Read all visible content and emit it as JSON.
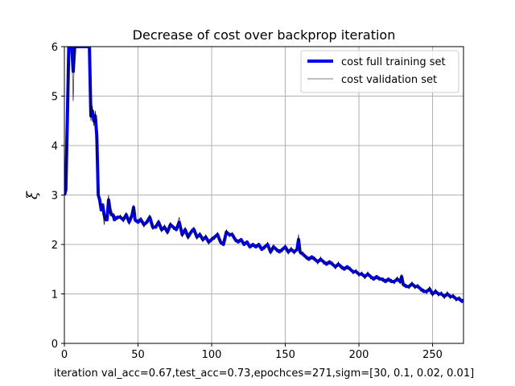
{
  "chart_data": {
    "type": "line",
    "title": "Decrease of cost over backprop iteration",
    "xlabel": "iteration   val_acc=0.67,test_acc=0.73,epochces=271,sigm=[30, 0.1, 0.02, 0.01]",
    "ylabel": "ξ",
    "xlim": [
      0,
      271
    ],
    "ylim": [
      0,
      6
    ],
    "x_ticks": [
      0,
      50,
      100,
      150,
      200,
      250
    ],
    "y_ticks": [
      0,
      1,
      2,
      3,
      4,
      5,
      6
    ],
    "x_tick_labels": [
      "0",
      "50",
      "100",
      "150",
      "200",
      "250"
    ],
    "y_tick_labels": [
      "0",
      "1",
      "2",
      "3",
      "4",
      "5",
      "6"
    ],
    "grid": true,
    "legend_position": "top-right",
    "series": [
      {
        "name": "cost full training set",
        "color": "#0000ee",
        "style": "thick",
        "x": [
          0,
          1,
          2,
          3,
          4,
          5,
          6,
          7,
          8,
          9,
          10,
          11,
          12,
          13,
          14,
          15,
          16,
          17,
          18,
          19,
          20,
          21,
          22,
          23,
          24,
          25,
          26,
          27,
          28,
          29,
          30,
          31,
          32,
          33,
          34,
          36,
          38,
          40,
          42,
          44,
          46,
          47,
          48,
          50,
          52,
          54,
          56,
          58,
          60,
          62,
          64,
          66,
          68,
          70,
          72,
          74,
          76,
          78,
          80,
          82,
          84,
          86,
          88,
          90,
          92,
          94,
          96,
          98,
          100,
          102,
          104,
          106,
          108,
          110,
          112,
          114,
          116,
          118,
          120,
          122,
          124,
          126,
          128,
          130,
          132,
          134,
          136,
          138,
          140,
          142,
          144,
          146,
          148,
          150,
          152,
          154,
          156,
          158,
          159,
          160,
          162,
          164,
          166,
          168,
          170,
          172,
          174,
          176,
          178,
          180,
          182,
          184,
          186,
          188,
          190,
          192,
          194,
          196,
          198,
          200,
          202,
          204,
          206,
          208,
          210,
          212,
          214,
          216,
          218,
          220,
          222,
          224,
          226,
          228,
          229,
          230,
          232,
          234,
          236,
          238,
          240,
          242,
          244,
          246,
          248,
          250,
          252,
          254,
          256,
          258,
          260,
          262,
          264,
          266,
          268,
          270,
          271
        ],
        "y": [
          3.0,
          3.1,
          4.5,
          6.0,
          6.0,
          6.0,
          5.5,
          6.0,
          6.0,
          6.0,
          6.0,
          6.0,
          6.0,
          6.0,
          6.0,
          6.0,
          6.0,
          6.0,
          4.6,
          4.7,
          4.5,
          4.6,
          4.2,
          3.0,
          2.9,
          2.7,
          2.8,
          2.6,
          2.5,
          2.5,
          2.9,
          2.7,
          2.6,
          2.6,
          2.5,
          2.55,
          2.55,
          2.5,
          2.6,
          2.45,
          2.6,
          2.75,
          2.5,
          2.45,
          2.5,
          2.4,
          2.45,
          2.55,
          2.35,
          2.35,
          2.45,
          2.3,
          2.35,
          2.25,
          2.4,
          2.35,
          2.3,
          2.45,
          2.2,
          2.3,
          2.15,
          2.25,
          2.3,
          2.15,
          2.2,
          2.1,
          2.15,
          2.05,
          2.1,
          2.15,
          2.2,
          2.05,
          2.0,
          2.25,
          2.2,
          2.2,
          2.1,
          2.05,
          2.1,
          2.0,
          2.05,
          1.95,
          2.0,
          1.95,
          2.0,
          1.9,
          1.95,
          2.0,
          1.85,
          1.95,
          1.9,
          1.85,
          1.9,
          1.95,
          1.85,
          1.9,
          1.85,
          1.9,
          2.1,
          1.85,
          1.8,
          1.75,
          1.7,
          1.75,
          1.7,
          1.65,
          1.7,
          1.65,
          1.6,
          1.65,
          1.6,
          1.55,
          1.6,
          1.55,
          1.5,
          1.55,
          1.5,
          1.45,
          1.45,
          1.4,
          1.4,
          1.35,
          1.4,
          1.35,
          1.3,
          1.35,
          1.3,
          1.3,
          1.25,
          1.3,
          1.25,
          1.25,
          1.3,
          1.25,
          1.35,
          1.2,
          1.15,
          1.15,
          1.2,
          1.15,
          1.15,
          1.1,
          1.05,
          1.05,
          1.1,
          1.0,
          1.05,
          1.0,
          1.0,
          0.95,
          1.0,
          0.95,
          0.95,
          0.9,
          0.9,
          0.85,
          0.88
        ]
      },
      {
        "name": "cost validation set",
        "color": "#000000",
        "style": "thin",
        "x": [
          0,
          1,
          2,
          3,
          4,
          5,
          6,
          7,
          8,
          9,
          10,
          11,
          12,
          13,
          14,
          15,
          16,
          17,
          18,
          19,
          20,
          21,
          22,
          23,
          24,
          25,
          26,
          27,
          28,
          29,
          30,
          31,
          32,
          33,
          34,
          36,
          38,
          40,
          42,
          44,
          46,
          47,
          48,
          50,
          52,
          54,
          56,
          58,
          60,
          62,
          64,
          66,
          68,
          70,
          72,
          74,
          76,
          78,
          80,
          82,
          84,
          86,
          88,
          90,
          92,
          94,
          96,
          98,
          100,
          102,
          104,
          106,
          108,
          110,
          112,
          114,
          116,
          118,
          120,
          122,
          124,
          126,
          128,
          130,
          132,
          134,
          136,
          138,
          140,
          142,
          144,
          146,
          148,
          150,
          152,
          154,
          156,
          158,
          159,
          160,
          162,
          164,
          166,
          168,
          170,
          172,
          174,
          176,
          178,
          180,
          182,
          184,
          186,
          188,
          190,
          192,
          194,
          196,
          198,
          200,
          202,
          204,
          206,
          208,
          210,
          212,
          214,
          216,
          218,
          220,
          222,
          224,
          226,
          228,
          229,
          230,
          232,
          234,
          236,
          238,
          240,
          242,
          244,
          246,
          248,
          250,
          252,
          254,
          256,
          258,
          260,
          262,
          264,
          266,
          268,
          270,
          271
        ],
        "y": [
          3.05,
          3.0,
          4.7,
          6.0,
          6.0,
          6.0,
          4.9,
          6.0,
          6.0,
          6.0,
          6.0,
          6.0,
          6.0,
          6.0,
          6.0,
          6.0,
          6.0,
          6.0,
          4.5,
          4.8,
          4.4,
          4.7,
          4.1,
          3.1,
          2.8,
          2.8,
          2.7,
          2.4,
          2.6,
          2.55,
          3.0,
          2.6,
          2.65,
          2.55,
          2.6,
          2.5,
          2.6,
          2.45,
          2.65,
          2.4,
          2.65,
          2.8,
          2.45,
          2.5,
          2.55,
          2.35,
          2.5,
          2.6,
          2.3,
          2.4,
          2.5,
          2.25,
          2.4,
          2.2,
          2.45,
          2.3,
          2.35,
          2.55,
          2.15,
          2.35,
          2.1,
          2.3,
          2.35,
          2.1,
          2.25,
          2.05,
          2.2,
          2.0,
          2.15,
          2.1,
          2.25,
          2.0,
          2.05,
          2.3,
          2.15,
          2.25,
          2.05,
          2.1,
          2.05,
          2.05,
          2.0,
          2.0,
          1.95,
          2.0,
          1.95,
          1.95,
          1.9,
          2.05,
          1.8,
          2.0,
          1.85,
          1.9,
          1.85,
          2.0,
          1.8,
          1.95,
          1.8,
          1.95,
          2.2,
          1.8,
          1.85,
          1.7,
          1.75,
          1.7,
          1.75,
          1.6,
          1.75,
          1.6,
          1.65,
          1.6,
          1.65,
          1.5,
          1.65,
          1.5,
          1.55,
          1.5,
          1.55,
          1.4,
          1.5,
          1.35,
          1.45,
          1.3,
          1.45,
          1.3,
          1.35,
          1.3,
          1.35,
          1.25,
          1.3,
          1.25,
          1.3,
          1.2,
          1.35,
          1.2,
          1.4,
          1.15,
          1.2,
          1.1,
          1.25,
          1.1,
          1.2,
          1.05,
          1.1,
          1.0,
          1.15,
          0.95,
          1.1,
          0.95,
          1.05,
          0.9,
          1.05,
          0.9,
          1.0,
          0.85,
          0.95,
          0.88,
          0.9
        ]
      }
    ]
  }
}
